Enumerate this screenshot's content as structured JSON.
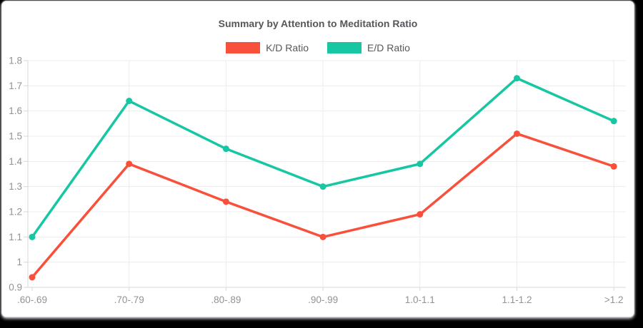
{
  "frame": {
    "background": "#000000",
    "card_background": "#ffffff"
  },
  "chart_data": {
    "type": "line",
    "title": "Summary by Attention to Meditation Ratio",
    "categories": [
      ".60-.69",
      ".70-.79",
      ".80-.89",
      ".90-.99",
      "1.0-1.1",
      "1.1-1.2",
      ">1.2"
    ],
    "series": [
      {
        "name": "K/D Ratio",
        "color": "#f8503a",
        "values": [
          0.94,
          1.39,
          1.24,
          1.1,
          1.19,
          1.51,
          1.38
        ]
      },
      {
        "name": "E/D Ratio",
        "color": "#17c6a3",
        "values": [
          1.1,
          1.64,
          1.45,
          1.3,
          1.39,
          1.73,
          1.56
        ]
      }
    ],
    "xlabel": "",
    "ylabel": "",
    "ylim": [
      0.9,
      1.8
    ],
    "ytick_step": 0.1,
    "yticks": [
      "0.9",
      "1",
      "1.1",
      "1.2",
      "1.3",
      "1.4",
      "1.5",
      "1.6",
      "1.7",
      "1.8"
    ],
    "grid": true,
    "legend_position": "top"
  },
  "theme": {
    "title_color": "#55575b",
    "legend_text_color": "#55575b",
    "axis_label_color": "#909295",
    "grid_color": "#ececec",
    "axis_color": "#d6d7d9"
  }
}
